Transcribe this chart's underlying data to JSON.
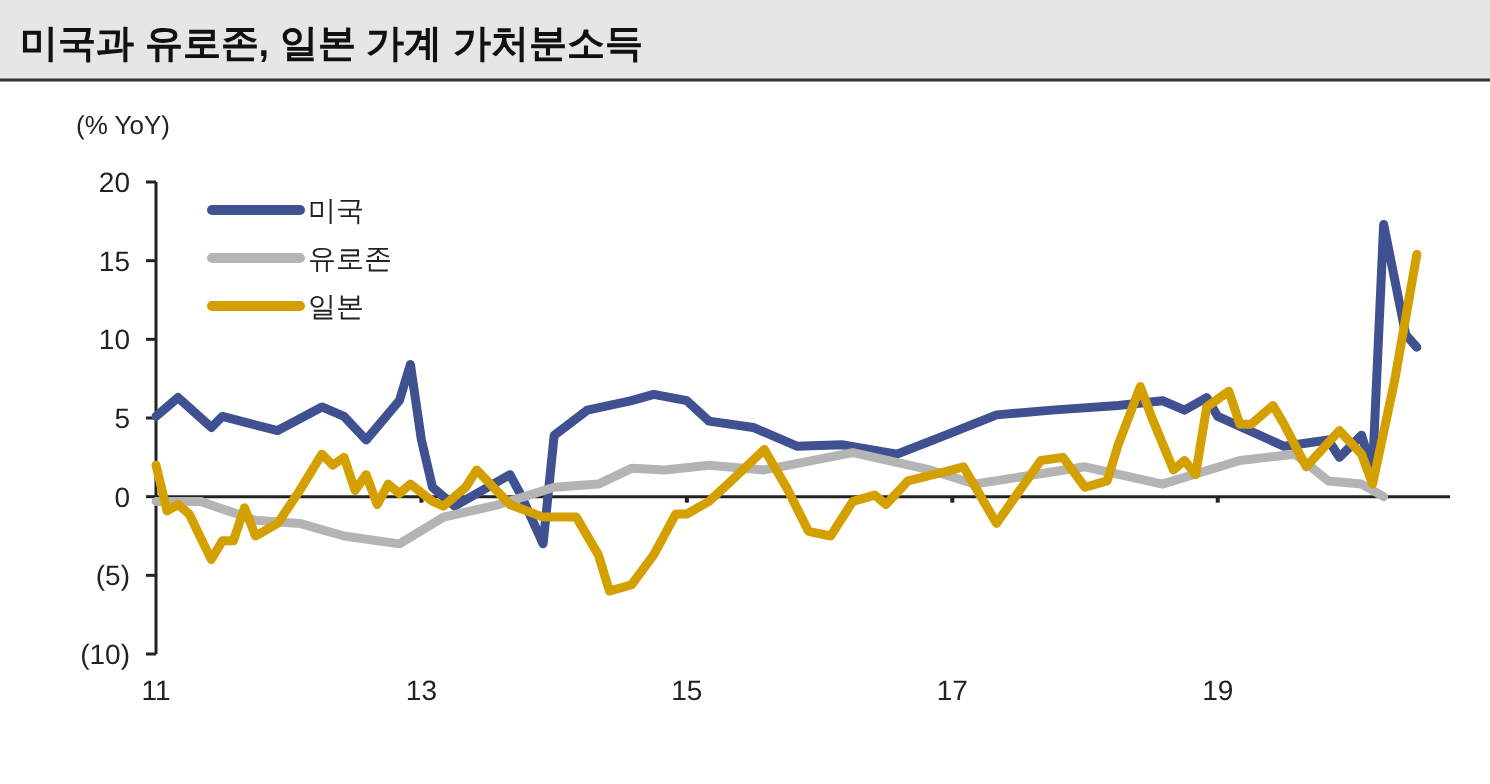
{
  "chart_data": {
    "type": "line",
    "title": "미국과 유로존, 일본 가계 가처분소득",
    "ylabel": "(% YoY)",
    "xlim": [
      "2011-01",
      "2020-10"
    ],
    "xticks": [
      {
        "value": "2011-01",
        "label": "11"
      },
      {
        "value": "2013-01",
        "label": "13"
      },
      {
        "value": "2015-01",
        "label": "15"
      },
      {
        "value": "2017-01",
        "label": "17"
      },
      {
        "value": "2019-01",
        "label": "19"
      }
    ],
    "ylim": [
      -10,
      20
    ],
    "yticks": [
      {
        "value": 20,
        "label": "20"
      },
      {
        "value": 15,
        "label": "15"
      },
      {
        "value": 10,
        "label": "10"
      },
      {
        "value": 5,
        "label": "5"
      },
      {
        "value": 0,
        "label": "0"
      },
      {
        "value": -5,
        "label": "(5)"
      },
      {
        "value": -10,
        "label": "(10)"
      }
    ],
    "ref_lines": [
      {
        "axis": "y",
        "value": 0,
        "color": "#222222"
      }
    ],
    "legend": "top left",
    "marker": "none",
    "line_style": "solid",
    "series": [
      {
        "name": "미국",
        "color": "#3f5190",
        "x": [
          "2011-01",
          "2011-03",
          "2011-06",
          "2011-07",
          "2011-12",
          "2012-04",
          "2012-06",
          "2012-08",
          "2012-11",
          "2012-12",
          "2013-01",
          "2013-02",
          "2013-04",
          "2013-09",
          "2013-10",
          "2013-12",
          "2014-01",
          "2014-04",
          "2014-08",
          "2014-10",
          "2015-01",
          "2015-03",
          "2015-07",
          "2015-11",
          "2016-03",
          "2016-08",
          "2016-12",
          "2017-05",
          "2017-10",
          "2018-04",
          "2018-08",
          "2018-10",
          "2018-12",
          "2019-01",
          "2019-07",
          "2019-11",
          "2019-12",
          "2020-02",
          "2020-03",
          "2020-04",
          "2020-06",
          "2020-07"
        ],
        "values": [
          5.1,
          6.3,
          4.4,
          5.1,
          4.2,
          5.7,
          5.1,
          3.6,
          6.1,
          8.4,
          3.6,
          0.6,
          -0.6,
          1.4,
          0.1,
          -3.0,
          3.9,
          5.5,
          6.1,
          6.5,
          6.1,
          4.8,
          4.4,
          3.2,
          3.3,
          2.7,
          3.8,
          5.2,
          5.5,
          5.8,
          6.1,
          5.5,
          6.3,
          5.1,
          3.2,
          3.6,
          2.5,
          3.9,
          1.7,
          17.3,
          10.3,
          9.5
        ]
      },
      {
        "name": "유로존",
        "color": "#b4b4b4",
        "x": [
          "2011-01",
          "2011-05",
          "2011-10",
          "2012-02",
          "2012-06",
          "2012-11",
          "2013-03",
          "2013-08",
          "2014-01",
          "2014-05",
          "2014-08",
          "2014-11",
          "2015-03",
          "2015-08",
          "2016-04",
          "2016-11",
          "2017-03",
          "2018-01",
          "2018-08",
          "2019-03",
          "2019-08",
          "2019-11",
          "2020-02",
          "2020-04"
        ],
        "values": [
          -0.3,
          -0.3,
          -1.5,
          -1.7,
          -2.5,
          -3.0,
          -1.3,
          -0.5,
          0.6,
          0.8,
          1.8,
          1.7,
          2.0,
          1.7,
          2.8,
          1.7,
          0.8,
          1.9,
          0.8,
          2.3,
          2.7,
          1.0,
          0.8,
          0
        ]
      },
      {
        "name": "일본",
        "color": "#d4a000",
        "x": [
          "2011-01",
          "2011-02",
          "2011-03",
          "2011-04",
          "2011-06",
          "2011-07",
          "2011-08",
          "2011-09",
          "2011-10",
          "2011-12",
          "2012-02",
          "2012-04",
          "2012-05",
          "2012-06",
          "2012-07",
          "2012-08",
          "2012-09",
          "2012-10",
          "2012-11",
          "2012-12",
          "2013-02",
          "2013-03",
          "2013-05",
          "2013-06",
          "2013-09",
          "2013-12",
          "2014-03",
          "2014-05",
          "2014-06",
          "2014-08",
          "2014-10",
          "2014-12",
          "2015-01",
          "2015-03",
          "2015-05",
          "2015-08",
          "2015-10",
          "2015-12",
          "2016-02",
          "2016-04",
          "2016-06",
          "2016-07",
          "2016-09",
          "2017-01",
          "2017-02",
          "2017-05",
          "2017-09",
          "2017-11",
          "2018-01",
          "2018-03",
          "2018-04",
          "2018-06",
          "2018-07",
          "2018-09",
          "2018-10",
          "2018-11",
          "2018-12",
          "2019-02",
          "2019-03",
          "2019-04",
          "2019-06",
          "2019-07",
          "2019-09",
          "2019-12",
          "2020-02",
          "2020-03",
          "2020-05",
          "2020-07"
        ],
        "values": [
          2.0,
          -0.9,
          -0.5,
          -1.1,
          -4.0,
          -2.8,
          -2.8,
          -0.7,
          -2.5,
          -1.7,
          0.4,
          2.7,
          2.0,
          2.5,
          0.4,
          1.4,
          -0.5,
          0.8,
          0.2,
          0.8,
          -0.3,
          -0.6,
          0.6,
          1.7,
          -0.5,
          -1.3,
          -1.3,
          -3.7,
          -6.0,
          -5.6,
          -3.7,
          -1.1,
          -1.1,
          -0.3,
          1.0,
          3.0,
          0.6,
          -2.2,
          -2.5,
          -0.3,
          0.1,
          -0.5,
          1.0,
          1.7,
          1.9,
          -1.7,
          2.3,
          2.5,
          0.6,
          1.0,
          3.3,
          7.0,
          5.1,
          1.7,
          2.3,
          1.4,
          5.7,
          6.7,
          4.6,
          4.6,
          5.8,
          4.6,
          1.9,
          4.2,
          2.7,
          0.8,
          7.4,
          15.4
        ]
      }
    ]
  }
}
